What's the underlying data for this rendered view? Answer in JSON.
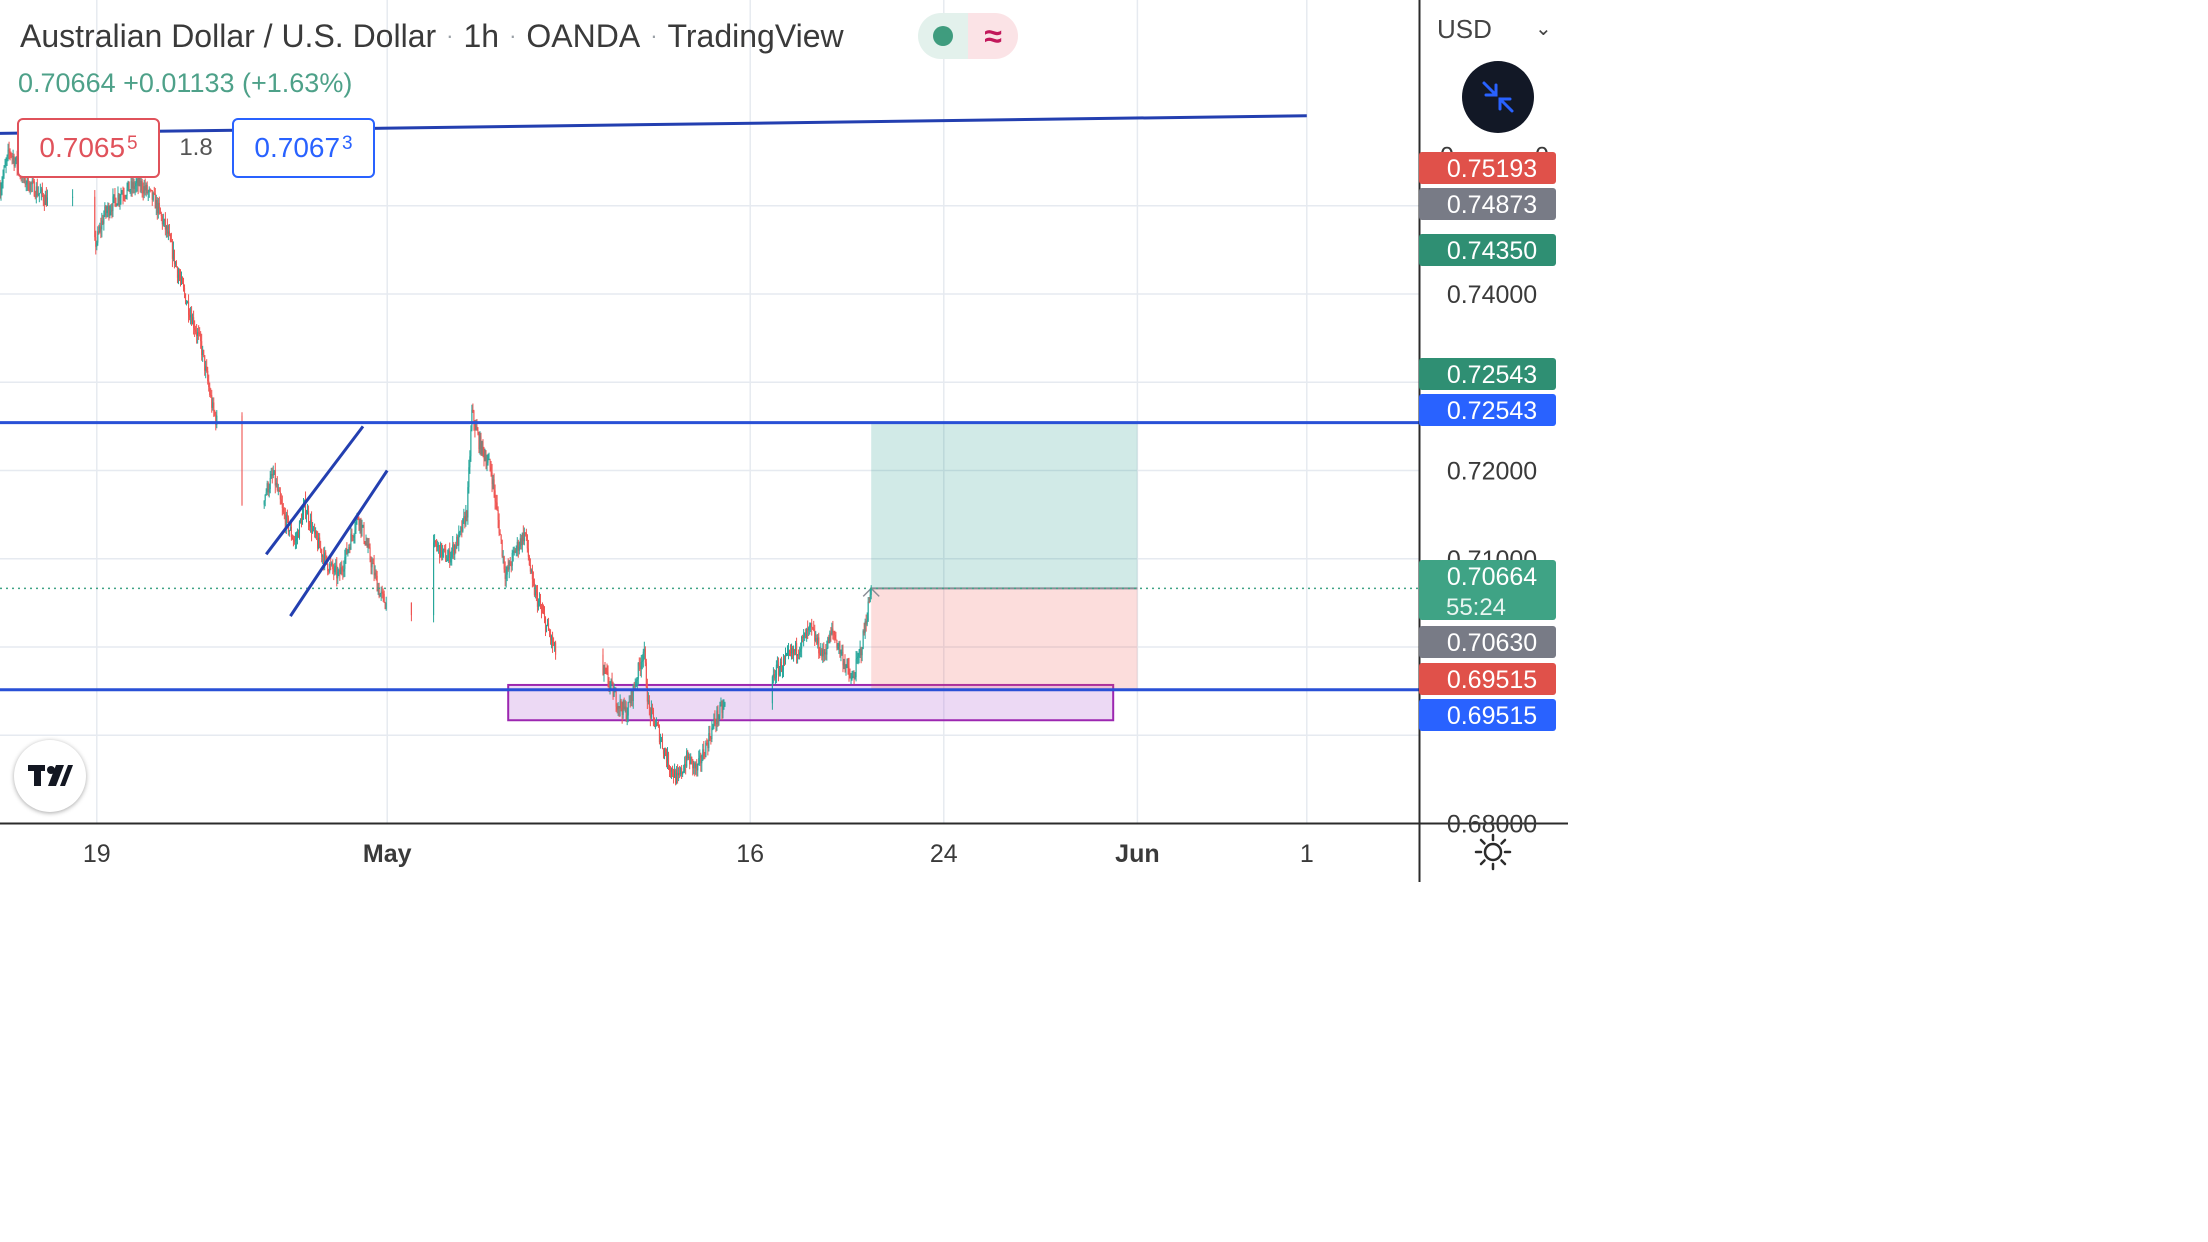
{
  "header": {
    "symbol_name": "Australian Dollar / U.S. Dollar",
    "interval": "1h",
    "broker": "OANDA",
    "platform": "TradingView",
    "status_market_icon": "market-open-dot-icon",
    "status_data_icon": "approx-icon",
    "status_data_glyph": "≈"
  },
  "quote": {
    "last": "0.70664",
    "change": "+0.01133",
    "change_pct": "(+1.63%)"
  },
  "order_panel": {
    "sell_price": "0.7065",
    "sell_pip": "5",
    "spread": "1.8",
    "buy_price": "0.7067",
    "buy_pip": "3"
  },
  "price_axis": {
    "currency": "USD",
    "dropdown_icon": "chevron-down-icon",
    "partial_label": "0.",
    "partial_label_tail": "0",
    "tick_labels": [
      "0.74000",
      "0.72000",
      "0.71000",
      "0.68000"
    ],
    "badges": [
      {
        "value": "0.75193",
        "color": "#e0514a"
      },
      {
        "value": "0.74873",
        "color": "#787b86"
      },
      {
        "value": "0.74350",
        "color": "#2f8f73"
      },
      {
        "value": "0.72543",
        "color": "#2f8f73"
      },
      {
        "value": "0.72543",
        "color": "#2962ff"
      },
      {
        "value": "0.70664",
        "color": "#3fa385",
        "countdown": "55:24"
      },
      {
        "value": "0.70630",
        "color": "#787b86"
      },
      {
        "value": "0.69515",
        "color": "#e0514a"
      },
      {
        "value": "0.69515",
        "color": "#2962ff"
      }
    ]
  },
  "time_axis": {
    "labels": [
      {
        "text": "19",
        "date": "2021-04-19"
      },
      {
        "text": "May",
        "date": "2021-05-01",
        "bold": true
      },
      {
        "text": "16",
        "date": "2021-05-16"
      },
      {
        "text": "24",
        "date": "2021-05-24"
      },
      {
        "text": "Jun",
        "date": "2021-06-01",
        "bold": true
      },
      {
        "text": "1",
        "date": "2021-06-08"
      }
    ]
  },
  "chart_data": {
    "type": "candlestick",
    "title": "Australian Dollar / U.S. Dollar · 1h · OANDA · TradingView",
    "x_range": [
      "2021-04-15",
      "2021-06-08"
    ],
    "ylim": [
      0.6788,
      0.7594
    ],
    "colors": {
      "up": "#26a69a",
      "down": "#ef5350",
      "grid": "#e6eaf0",
      "trendline": "#2950d6"
    },
    "horizontal_levels": [
      0.72543,
      0.69515
    ],
    "trendline": {
      "from": [
        "2021-04-15",
        0.7582
      ],
      "to": [
        "2021-06-08",
        0.7602
      ]
    },
    "channel": [
      {
        "from": [
          "2021-04-26",
          0.7105
        ],
        "to": [
          "2021-04-30",
          0.725
        ]
      },
      {
        "from": [
          "2021-04-27",
          0.7035
        ],
        "to": [
          "2021-05-01",
          0.72
        ]
      }
    ],
    "demand_zone": {
      "from": "2021-05-06",
      "to": "2021-05-31",
      "price_high": 0.6957,
      "price_low": 0.6917
    },
    "long_position": {
      "from": "2021-05-21",
      "to": "2021-06-01",
      "entry": 0.70664,
      "target": 0.72543,
      "stop": 0.69515
    },
    "last_price": 0.70664,
    "price_path": [
      [
        "2021-04-15",
        0.752
      ],
      [
        "2021-04-15.4",
        0.7563
      ],
      [
        "2021-04-16",
        0.753
      ],
      [
        "2021-04-17",
        0.7505
      ],
      [
        "2021-04-17.5",
        0.7542
      ],
      [
        "2021-04-18.3",
        0.748
      ],
      [
        "2021-04-18.6",
        0.7442
      ],
      [
        "2021-04-19",
        0.746
      ],
      [
        "2021-04-19.3",
        0.749
      ],
      [
        "2021-04-20",
        0.7515
      ],
      [
        "2021-04-20.8",
        0.7525
      ],
      [
        "2021-04-21.4",
        0.7505
      ],
      [
        "2021-04-21.9",
        0.747
      ],
      [
        "2021-04-22.5",
        0.741
      ],
      [
        "2021-04-23.3",
        0.7342
      ],
      [
        "2021-04-23.8",
        0.7268
      ],
      [
        "2021-04-24.3",
        0.7228
      ],
      [
        "2021-04-24.8",
        0.718
      ],
      [
        "2021-04-25.3",
        0.714
      ],
      [
        "2021-04-25.8",
        0.7165
      ],
      [
        "2021-04-26.3",
        0.7195
      ],
      [
        "2021-04-26.7",
        0.715
      ],
      [
        "2021-04-27.2",
        0.7118
      ],
      [
        "2021-04-27.6",
        0.716
      ],
      [
        "2021-04-28",
        0.7125
      ],
      [
        "2021-04-28.5",
        0.7095
      ],
      [
        "2021-04-29",
        0.708
      ],
      [
        "2021-04-29.3",
        0.7105
      ],
      [
        "2021-04-29.8",
        0.715
      ],
      [
        "2021-04-30.3",
        0.71
      ],
      [
        "2021-04-30.7",
        0.706
      ],
      [
        "2021-05-01",
        0.7047
      ],
      [
        "2021-05-01.5",
        0.7075
      ],
      [
        "2021-05-02",
        0.7045
      ],
      [
        "2021-05-02.5",
        0.7085
      ],
      [
        "2021-05-03",
        0.7115
      ],
      [
        "2021-05-03.5",
        0.71
      ],
      [
        "2021-05-04",
        0.7125
      ],
      [
        "2021-05-04.3",
        0.7155
      ],
      [
        "2021-05-04.5",
        0.7265
      ],
      [
        "2021-05-04.8",
        0.7232
      ],
      [
        "2021-05-05.3",
        0.72
      ],
      [
        "2021-05-05.6",
        0.714
      ],
      [
        "2021-05-05.9",
        0.708
      ],
      [
        "2021-05-06.3",
        0.711
      ],
      [
        "2021-05-06.7",
        0.713
      ],
      [
        "2021-05-07",
        0.707
      ],
      [
        "2021-05-07.5",
        0.703
      ],
      [
        "2021-05-08",
        0.699
      ],
      [
        "2021-05-08.4",
        0.6968
      ],
      [
        "2021-05-08.8",
        0.6952
      ],
      [
        "2021-05-09.2",
        0.6935
      ],
      [
        "2021-05-09.6",
        0.696
      ],
      [
        "2021-05-10",
        0.697
      ],
      [
        "2021-05-10.5",
        0.6938
      ],
      [
        "2021-05-10.9",
        0.6925
      ],
      [
        "2021-05-11.3",
        0.6965
      ],
      [
        "2021-05-11.6",
        0.6998
      ],
      [
        "2021-05-11.8",
        0.693
      ],
      [
        "2021-05-12.2",
        0.6905
      ],
      [
        "2021-05-12.6",
        0.687
      ],
      [
        "2021-05-13",
        0.6848
      ],
      [
        "2021-05-13.4",
        0.6875
      ],
      [
        "2021-05-13.8",
        0.686
      ],
      [
        "2021-05-14.2",
        0.689
      ],
      [
        "2021-05-14.6",
        0.692
      ],
      [
        "2021-05-15",
        0.6935
      ],
      [
        "2021-05-15.4",
        0.6885
      ],
      [
        "2021-05-15.8",
        0.6875
      ],
      [
        "2021-05-16.2",
        0.6905
      ],
      [
        "2021-05-16.6",
        0.6938
      ],
      [
        "2021-05-17",
        0.697
      ],
      [
        "2021-05-17.5",
        0.6985
      ],
      [
        "2021-05-18",
        0.7
      ],
      [
        "2021-05-18.5",
        0.702
      ],
      [
        "2021-05-19",
        0.699
      ],
      [
        "2021-05-19.4",
        0.7018
      ],
      [
        "2021-05-19.8",
        0.699
      ],
      [
        "2021-05-20.2",
        0.696
      ],
      [
        "2021-05-20.6",
        0.7
      ],
      [
        "2021-05-21",
        0.7066
      ]
    ]
  }
}
